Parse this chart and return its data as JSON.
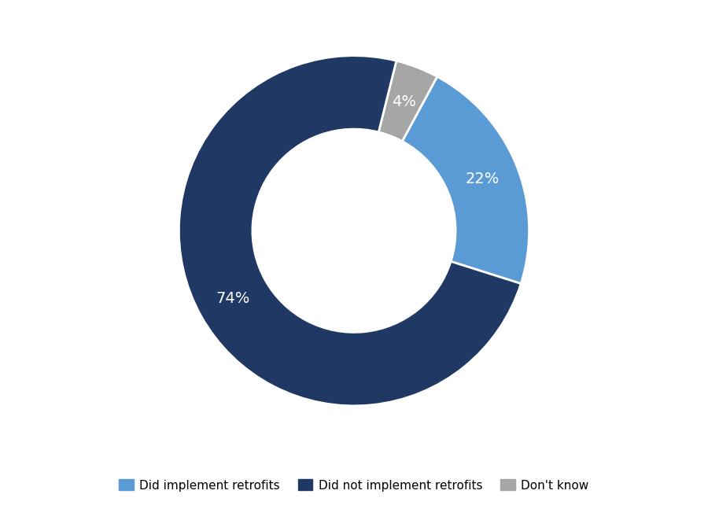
{
  "slices": [
    22,
    74,
    4
  ],
  "slice_order": [
    2,
    0,
    1
  ],
  "labels": [
    "Did implement retrofits",
    "Did not implement retrofits",
    "Don't know"
  ],
  "colors": [
    "#5b9bd5",
    "#1f3864",
    "#a6a6a6"
  ],
  "pct_texts": [
    "22%",
    "74%",
    "4%"
  ],
  "pct_colors": [
    "white",
    "white",
    "white"
  ],
  "startangle": 76,
  "donut_width": 0.42,
  "background_color": "#ffffff",
  "legend_fontsize": 11,
  "autopct_fontsize": 14,
  "figsize": [
    9.0,
    6.75
  ],
  "dpi": 100
}
